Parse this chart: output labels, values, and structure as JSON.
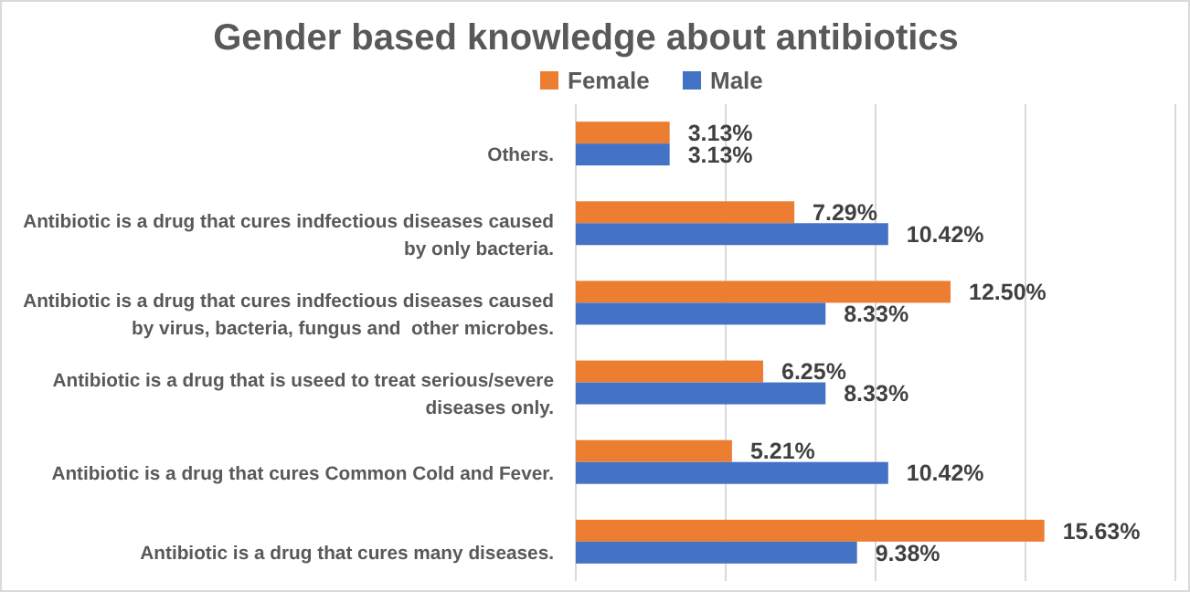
{
  "chart_data": {
    "type": "bar",
    "orientation": "horizontal",
    "title": "Gender based knowledge about antibiotics",
    "categories": [
      "Others.",
      "Antibiotic is a drug that cures indfectious diseases caused by only bacteria.",
      "Antibiotic is a drug that cures indfectious diseases caused by virus, bacteria, fungus and  other microbes.",
      "Antibiotic is a drug that is useed to treat serious/severe diseases only.",
      "Antibiotic is a drug that cures Common Cold and Fever.",
      "Antibiotic is a drug that cures many diseases."
    ],
    "series": [
      {
        "name": "Female",
        "color": "#ed7d31",
        "values": [
          3.13,
          7.29,
          12.5,
          6.25,
          5.21,
          15.63
        ],
        "value_labels": [
          "3.13%",
          "7.29%",
          "12.50%",
          "6.25%",
          "5.21%",
          "15.63%"
        ]
      },
      {
        "name": "Male",
        "color": "#4472c4",
        "values": [
          3.13,
          10.42,
          8.33,
          8.33,
          10.42,
          9.38
        ],
        "value_labels": [
          "3.13%",
          "10.42%",
          "8.33%",
          "8.33%",
          "10.42%",
          "9.38%"
        ]
      }
    ],
    "xlim": [
      0,
      20
    ],
    "xticks": [
      {
        "value": 0,
        "label": null
      },
      {
        "value": 5,
        "label": null
      },
      {
        "value": 10,
        "label": null
      },
      {
        "value": 15,
        "label": null
      },
      {
        "value": 20,
        "label": null
      }
    ],
    "tick_labels": "y",
    "grid": "x",
    "legend": "top"
  }
}
